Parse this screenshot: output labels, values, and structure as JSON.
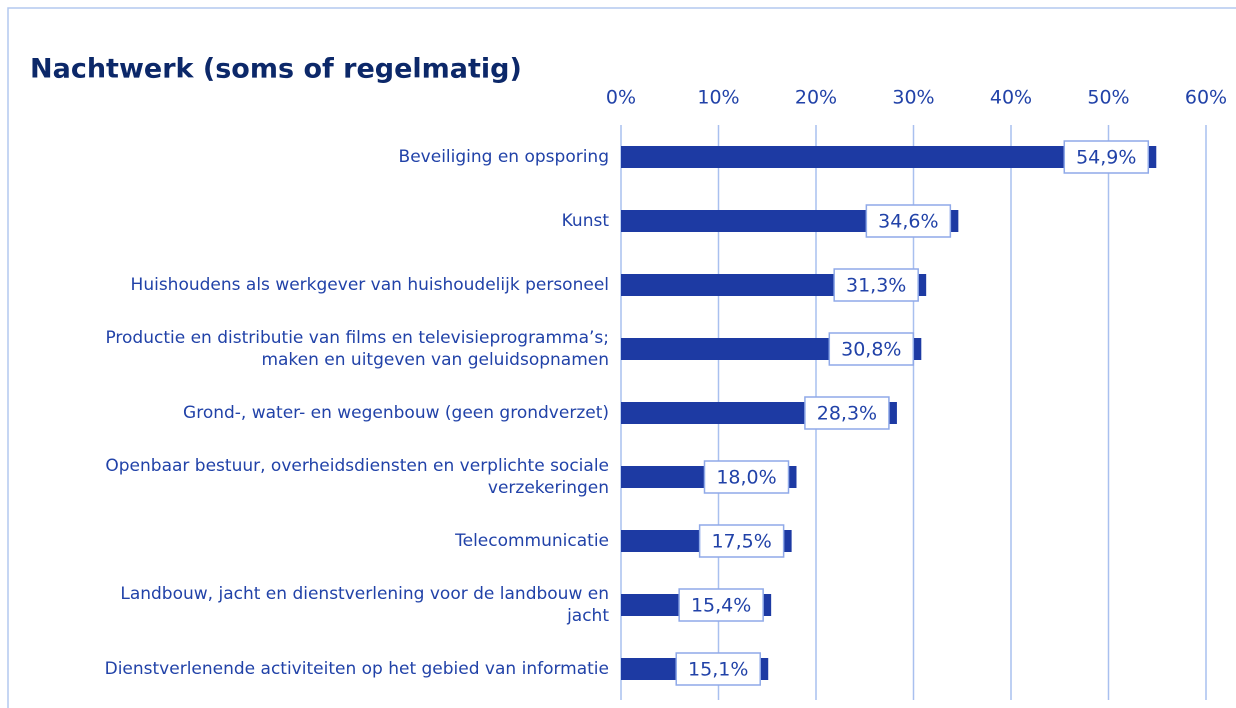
{
  "chart_data": {
    "type": "bar",
    "orientation": "horizontal",
    "title": "Nachtwerk (soms of regelmatig)",
    "categories": [
      "Beveiliging en opsporing",
      "Kunst",
      "Huishoudens als werkgever van huishoudelijk personeel",
      "Productie en distributie van films en televisieprogramma’s;\nmaken en uitgeven van geluidsopnamen",
      "Grond-, water- en wegenbouw (geen grondverzet)",
      "Openbaar bestuur, overheidsdiensten en verplichte sociale\nverzekeringen",
      "Telecommunicatie",
      "Landbouw, jacht en dienstverlening voor de landbouw en\njacht",
      "Dienstverlenende activiteiten op het gebied van informatie"
    ],
    "values": [
      54.9,
      34.6,
      31.3,
      30.8,
      28.3,
      18.0,
      17.5,
      15.4,
      15.1
    ],
    "value_labels": [
      "54,9%",
      "34,6%",
      "31,3%",
      "30,8%",
      "28,3%",
      "18,0%",
      "17,5%",
      "15,4%",
      "15,1%"
    ],
    "color": "#1d3aa3",
    "xlim": [
      0,
      60
    ],
    "xticks": [
      {
        "value": 0,
        "label": "0%"
      },
      {
        "value": 10,
        "label": "10%"
      },
      {
        "value": 20,
        "label": "20%"
      },
      {
        "value": 30,
        "label": "30%"
      },
      {
        "value": 40,
        "label": "40%"
      },
      {
        "value": 50,
        "label": "50%"
      },
      {
        "value": 60,
        "label": "60%"
      }
    ],
    "grid": true
  }
}
